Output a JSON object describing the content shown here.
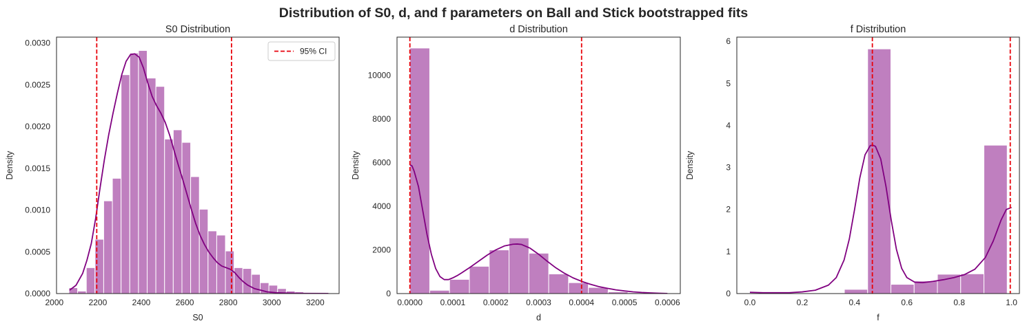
{
  "figure": {
    "title": "Distribution of S0, d, and f parameters on Ball and Stick bootstrapped fits"
  },
  "colors": {
    "bar_fill": "#bf7fbf",
    "bar_edge": "#ffffff",
    "kde_line": "#800080",
    "ci_line": "#e8000b",
    "axes_edge": "#262626"
  },
  "chart_data": [
    {
      "type": "bar",
      "title": "S0 Distribution",
      "xlabel": "S0",
      "ylabel": "Density",
      "xlim": [
        2010,
        3310
      ],
      "ylim": [
        0,
        0.00307
      ],
      "xticks": [
        2000,
        2200,
        2400,
        2600,
        2800,
        3000,
        3200
      ],
      "xtick_labels": [
        "2000",
        "2200",
        "2400",
        "2600",
        "2800",
        "3000",
        "3200"
      ],
      "yticks": [
        0,
        0.0005,
        0.001,
        0.0015,
        0.002,
        0.0025,
        0.003
      ],
      "ytick_labels": [
        "0.0000",
        "0.0005",
        "0.0010",
        "0.0015",
        "0.0020",
        "0.0025",
        "0.0030"
      ],
      "grid": false,
      "legend": {
        "position": "top-right",
        "entries": [
          {
            "label": "95% CI",
            "style": "dashed",
            "color": "#e8000b"
          }
        ]
      },
      "bins": {
        "start": 2067,
        "width": 40
      },
      "values": [
        7e-05,
        3e-05,
        0.00031,
        0.00065,
        0.00111,
        0.00138,
        0.00262,
        0.00288,
        0.00291,
        0.00258,
        0.00248,
        0.00185,
        0.00196,
        0.00181,
        0.0014,
        0.00101,
        0.00075,
        0.0007,
        0.00051,
        0.00031,
        0.0003,
        0.00023,
        0.00013,
        0.0001,
        6e-05,
        3e-05,
        2e-05,
        1e-05,
        1e-05,
        1e-05
      ],
      "kde": {
        "x": [
          2070,
          2100,
          2130,
          2150,
          2170,
          2190,
          2210,
          2230,
          2250,
          2270,
          2290,
          2310,
          2330,
          2350,
          2370,
          2390,
          2410,
          2430,
          2450,
          2470,
          2490,
          2510,
          2530,
          2550,
          2570,
          2590,
          2610,
          2630,
          2650,
          2670,
          2690,
          2710,
          2730,
          2750,
          2770,
          2790,
          2810,
          2830,
          2850,
          2870,
          2890,
          2920,
          2950,
          2980,
          3020,
          3080,
          3150,
          3260
        ],
        "y": [
          4e-05,
          0.0001,
          0.00024,
          0.0004,
          0.0006,
          0.0009,
          0.00126,
          0.0016,
          0.0019,
          0.00216,
          0.0024,
          0.00262,
          0.00278,
          0.00286,
          0.00287,
          0.00283,
          0.0027,
          0.00252,
          0.00236,
          0.00225,
          0.00216,
          0.00205,
          0.0019,
          0.00172,
          0.00154,
          0.00137,
          0.00119,
          0.00101,
          0.00084,
          0.0007,
          0.00059,
          0.0005,
          0.00043,
          0.00037,
          0.00033,
          0.00031,
          0.00029,
          0.00025,
          0.00019,
          0.00014,
          0.0001,
          6e-05,
          4e-05,
          2e-05,
          1e-05,
          5e-06,
          2e-06,
          1e-06
        ]
      },
      "ci": [
        2195,
        2815
      ]
    },
    {
      "type": "bar",
      "title": "d Distribution",
      "xlabel": "d",
      "ylabel": "Density",
      "xlim": [
        -3e-05,
        0.00063
      ],
      "ylim": [
        0,
        11750
      ],
      "xticks": [
        0,
        0.0001,
        0.0002,
        0.0003,
        0.0004,
        0.0005,
        0.0006
      ],
      "xtick_labels": [
        "0.0000",
        "0.0001",
        "0.0002",
        "0.0003",
        "0.0004",
        "0.0005",
        "0.0006"
      ],
      "yticks": [
        0,
        2000,
        4000,
        6000,
        8000,
        10000
      ],
      "ytick_labels": [
        "0",
        "2000",
        "4000",
        "6000",
        "8000",
        "10000"
      ],
      "grid": false,
      "bins": {
        "start": 0,
        "width": 4.62e-05
      },
      "values": [
        11250,
        150,
        650,
        1250,
        2000,
        2550,
        1850,
        900,
        500,
        280,
        80,
        40,
        20
      ],
      "kde": {
        "x": [
          0,
          5e-06,
          1e-05,
          2e-05,
          3e-05,
          4e-05,
          5e-05,
          6e-05,
          7e-05,
          8e-05,
          9e-05,
          0.0001,
          0.00011,
          0.00012,
          0.00014,
          0.00016,
          0.00018,
          0.0002,
          0.00022,
          0.00024,
          0.00025,
          0.00026,
          0.00028,
          0.0003,
          0.00032,
          0.00034,
          0.00036,
          0.00038,
          0.0004,
          0.00042,
          0.00044,
          0.00046,
          0.00048,
          0.0005,
          0.00052,
          0.00054,
          0.00056,
          0.00058,
          0.0006
        ],
        "y": [
          5900,
          5850,
          5600,
          4900,
          3800,
          2700,
          1800,
          1150,
          780,
          640,
          640,
          720,
          820,
          940,
          1200,
          1480,
          1760,
          2000,
          2180,
          2260,
          2270,
          2250,
          2080,
          1800,
          1480,
          1180,
          930,
          720,
          560,
          430,
          320,
          240,
          170,
          120,
          80,
          50,
          30,
          15,
          5
        ]
      },
      "ci": [
        0,
        0.0004
      ]
    },
    {
      "type": "bar",
      "title": "f Distribution",
      "xlabel": "f",
      "ylabel": "Density",
      "xlim": [
        -0.05,
        1.03
      ],
      "ylim": [
        0,
        6.1
      ],
      "xticks": [
        0,
        0.2,
        0.4,
        0.6,
        0.8,
        1.0
      ],
      "xtick_labels": [
        "0.0",
        "0.2",
        "0.4",
        "0.6",
        "0.8",
        "1.0"
      ],
      "yticks": [
        0,
        1,
        2,
        3,
        4,
        5,
        6
      ],
      "ytick_labels": [
        "0",
        "1",
        "2",
        "3",
        "4",
        "5",
        "6"
      ],
      "grid": false,
      "bins": {
        "start": 0.361,
        "width": 0.0889
      },
      "values": [
        0.1,
        5.82,
        0.22,
        0.3,
        0.46,
        0.47,
        3.53
      ],
      "kde": {
        "x": [
          0,
          0.05,
          0.1,
          0.15,
          0.2,
          0.25,
          0.3,
          0.33,
          0.36,
          0.38,
          0.4,
          0.42,
          0.44,
          0.46,
          0.47,
          0.48,
          0.5,
          0.52,
          0.54,
          0.56,
          0.58,
          0.6,
          0.63,
          0.66,
          0.7,
          0.74,
          0.78,
          0.82,
          0.86,
          0.9,
          0.93,
          0.96,
          0.98,
          1.0
        ],
        "y": [
          0.03,
          0.02,
          0.02,
          0.02,
          0.04,
          0.08,
          0.2,
          0.38,
          0.8,
          1.3,
          2.0,
          2.75,
          3.3,
          3.52,
          3.53,
          3.5,
          3.2,
          2.55,
          1.75,
          1.05,
          0.6,
          0.38,
          0.27,
          0.26,
          0.29,
          0.33,
          0.38,
          0.45,
          0.58,
          0.86,
          1.25,
          1.75,
          2.0,
          2.05
        ]
      },
      "ci": [
        0.468,
        0.995
      ]
    }
  ]
}
